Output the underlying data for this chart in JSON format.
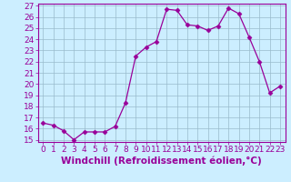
{
  "x": [
    0,
    1,
    2,
    3,
    4,
    5,
    6,
    7,
    8,
    9,
    10,
    11,
    12,
    13,
    14,
    15,
    16,
    17,
    18,
    19,
    20,
    21,
    22,
    23
  ],
  "y": [
    16.5,
    16.3,
    15.8,
    15.0,
    15.7,
    15.7,
    15.7,
    16.2,
    18.3,
    22.5,
    23.3,
    23.8,
    26.7,
    26.6,
    25.3,
    25.2,
    24.8,
    25.2,
    26.8,
    26.3,
    24.2,
    22.0,
    19.2,
    19.8
  ],
  "line_color": "#990099",
  "marker": "D",
  "marker_size": 2.5,
  "bg_color": "#cceeff",
  "grid_color": "#99bbcc",
  "xlabel": "Windchill (Refroidissement éolien,°C)",
  "xlabel_color": "#990099",
  "tick_color": "#990099",
  "ylim": [
    15,
    27
  ],
  "xlim": [
    -0.5,
    23.5
  ],
  "yticks": [
    15,
    16,
    17,
    18,
    19,
    20,
    21,
    22,
    23,
    24,
    25,
    26,
    27
  ],
  "xticks": [
    0,
    1,
    2,
    3,
    4,
    5,
    6,
    7,
    8,
    9,
    10,
    11,
    12,
    13,
    14,
    15,
    16,
    17,
    18,
    19,
    20,
    21,
    22,
    23
  ],
  "xtick_labels": [
    "0",
    "1",
    "2",
    "3",
    "4",
    "5",
    "6",
    "7",
    "8",
    "9",
    "10",
    "11",
    "12",
    "13",
    "14",
    "15",
    "16",
    "17",
    "18",
    "19",
    "20",
    "21",
    "22",
    "23"
  ],
  "font_size": 6.5,
  "label_font_size": 7.5
}
